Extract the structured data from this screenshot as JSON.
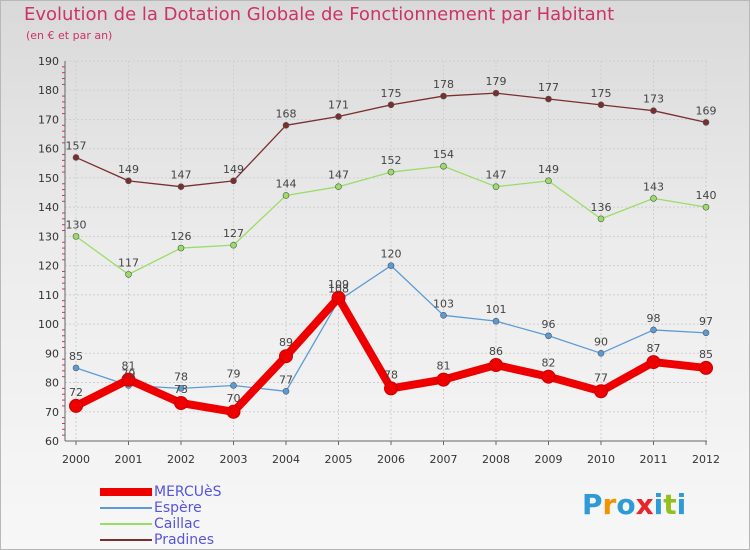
{
  "title": "Evolution de la Dotation Globale de Fonctionnement par Habitant",
  "subtitle": "(en € et par an)",
  "logo": {
    "letters": [
      "P",
      "r",
      "o",
      "x",
      "i",
      "t",
      "i"
    ],
    "colors": [
      "#2e9bd6",
      "#f29400",
      "#2e9bd6",
      "#e8262a",
      "#2e9bd6",
      "#93c01f",
      "#2e9bd6"
    ]
  },
  "chart_data": {
    "type": "line",
    "x": [
      "2000",
      "2001",
      "2002",
      "2003",
      "2004",
      "2005",
      "2006",
      "2007",
      "2008",
      "2009",
      "2010",
      "2011",
      "2012"
    ],
    "ylim": [
      60,
      190
    ],
    "yticks": [
      "60",
      "70",
      "80",
      "90",
      "100",
      "110",
      "120",
      "130",
      "140",
      "150",
      "160",
      "170",
      "180",
      "190"
    ],
    "grid": true,
    "legend_position": "bottom-left",
    "series": [
      {
        "name": "MERCUèS",
        "color": "#ee0000",
        "values": [
          72,
          81,
          73,
          70,
          89,
          109,
          78,
          81,
          86,
          82,
          77,
          87,
          85
        ],
        "labels": [
          "72",
          "81",
          "73",
          "70",
          "89",
          "109",
          "78",
          "81",
          "86",
          "82",
          "77",
          "87",
          "85"
        ]
      },
      {
        "name": "Espère",
        "color": "#5b9bd5",
        "values": [
          85,
          79,
          78,
          79,
          77,
          108,
          120,
          103,
          101,
          96,
          90,
          98,
          97
        ],
        "labels": [
          "85",
          "79",
          "78",
          "79",
          "77",
          "108",
          "120",
          "103",
          "101",
          "96",
          "90",
          "98",
          "97"
        ]
      },
      {
        "name": "Caillac",
        "color": "#99dd66",
        "values": [
          130,
          117,
          126,
          127,
          144,
          147,
          152,
          154,
          147,
          149,
          136,
          143,
          140
        ],
        "labels": [
          "130",
          "117",
          "126",
          "127",
          "144",
          "147",
          "152",
          "154",
          "147",
          "149",
          "136",
          "143",
          "140"
        ]
      },
      {
        "name": "Pradines",
        "color": "#7a2e2e",
        "values": [
          157,
          149,
          147,
          149,
          168,
          171,
          175,
          178,
          179,
          177,
          175,
          173,
          169
        ],
        "labels": [
          "157",
          "149",
          "147",
          "149",
          "168",
          "171",
          "175",
          "178",
          "179",
          "177",
          "175",
          "173",
          "169"
        ]
      }
    ]
  }
}
